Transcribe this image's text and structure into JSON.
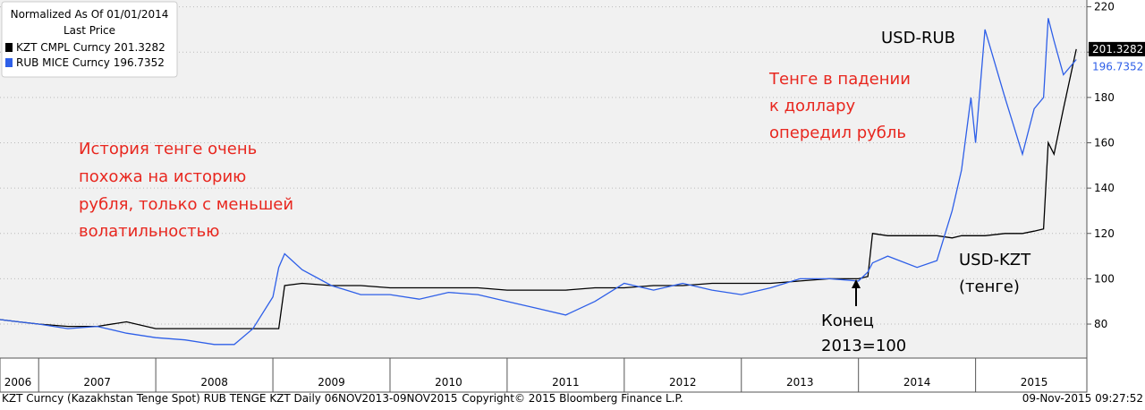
{
  "chart_data": {
    "type": "line",
    "legend_title": "Normalized As Of 01/01/2014",
    "legend_subtitle": "Last Price",
    "x": [
      2006.67,
      2006.83,
      2007.0,
      2007.25,
      2007.5,
      2007.75,
      2008.0,
      2008.25,
      2008.5,
      2008.67,
      2008.83,
      2009.0,
      2009.05,
      2009.1,
      2009.25,
      2009.5,
      2009.75,
      2010.0,
      2010.25,
      2010.5,
      2010.75,
      2011.0,
      2011.25,
      2011.5,
      2011.75,
      2012.0,
      2012.25,
      2012.5,
      2012.75,
      2013.0,
      2013.25,
      2013.5,
      2013.75,
      2014.0,
      2014.08,
      2014.12,
      2014.25,
      2014.5,
      2014.67,
      2014.8,
      2014.88,
      2014.96,
      2015.0,
      2015.08,
      2015.25,
      2015.4,
      2015.5,
      2015.58,
      2015.62,
      2015.67,
      2015.75,
      2015.86
    ],
    "series": [
      {
        "name": "KZT CMPL Curncy",
        "color": "#000000",
        "values": [
          82,
          81,
          80,
          79,
          79,
          81,
          78,
          78,
          78,
          78,
          78,
          78,
          78,
          97,
          98,
          97,
          97,
          96,
          96,
          96,
          96,
          95,
          95,
          95,
          96,
          96,
          97,
          97,
          98,
          98,
          98,
          99,
          100,
          100,
          101,
          120,
          119,
          119,
          119,
          118,
          119,
          119,
          119,
          119,
          120,
          120,
          121,
          122,
          160,
          155,
          175,
          201.3282
        ]
      },
      {
        "name": "RUB MICE Curncy",
        "color": "#2e5fe8",
        "values": [
          82,
          81,
          80,
          78,
          79,
          76,
          74,
          73,
          71,
          71,
          78,
          92,
          105,
          111,
          104,
          97,
          93,
          93,
          91,
          94,
          93,
          90,
          87,
          84,
          90,
          98,
          95,
          98,
          95,
          93,
          96,
          100,
          100,
          99,
          103,
          107,
          110,
          105,
          108,
          130,
          148,
          180,
          160,
          210,
          180,
          155,
          175,
          180,
          215,
          205,
          190,
          196.7352
        ]
      }
    ],
    "xlim": [
      2006.67,
      2015.95
    ],
    "xticks": [
      {
        "value": 2006.5,
        "label": "2006"
      },
      {
        "value": 2007.5,
        "label": "2007"
      },
      {
        "value": 2008.5,
        "label": "2008"
      },
      {
        "value": 2009.5,
        "label": "2009"
      },
      {
        "value": 2010.5,
        "label": "2010"
      },
      {
        "value": 2011.5,
        "label": "2011"
      },
      {
        "value": 2012.5,
        "label": "2012"
      },
      {
        "value": 2013.5,
        "label": "2013"
      },
      {
        "value": 2014.5,
        "label": "2014"
      },
      {
        "value": 2015.5,
        "label": "2015"
      }
    ],
    "ylim": [
      65,
      223
    ],
    "yticks": [
      80,
      100,
      120,
      140,
      160,
      180,
      200,
      220
    ],
    "grid": true,
    "annotations": [
      [
        "История тенге очень",
        "похожа на историю",
        "рубля, только с меньшей",
        "волатильностью"
      ],
      [
        "Тенге в падении",
        "к доллару",
        "опередил рубль"
      ],
      [
        "USD-RUB"
      ],
      [
        "USD-KZT",
        "(тенге)"
      ],
      [
        "Конец",
        "2013=100"
      ]
    ],
    "footer_left": "KZT Curncy (Kazakhstan Tenge Spot) RUB TENGE KZT  Daily 06NOV2013-09NOV2015",
    "footer_center": "Copyright© 2015 Bloomberg Finance L.P.",
    "footer_right": "09-Nov-2015 09:27:52"
  }
}
